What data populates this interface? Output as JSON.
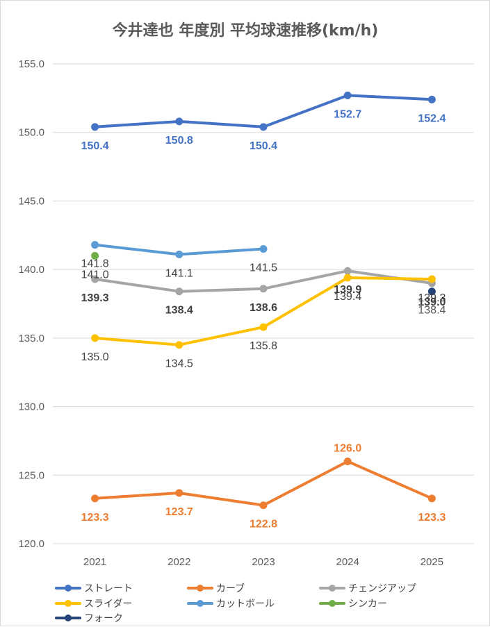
{
  "chart_data": {
    "type": "line",
    "title": "今井達也 年度別 平均球速推移(km/h)",
    "categories": [
      "2021",
      "2022",
      "2023",
      "2024",
      "2025"
    ],
    "ylim": [
      120.0,
      155.0
    ],
    "yticks": [
      "120.0",
      "125.0",
      "130.0",
      "135.0",
      "140.0",
      "145.0",
      "150.0",
      "155.0"
    ],
    "grid": true,
    "legend_position": "bottom",
    "series": [
      {
        "name": "ストレート",
        "color": "#4472c4",
        "values": [
          150.4,
          150.8,
          150.4,
          152.7,
          152.4
        ],
        "labels": [
          "150.4",
          "150.8",
          "150.4",
          "152.7",
          "152.4"
        ]
      },
      {
        "name": "カーブ",
        "color": "#ed7d31",
        "values": [
          123.3,
          123.7,
          122.8,
          126.0,
          123.3
        ],
        "labels": [
          "123.3",
          "123.7",
          "122.8",
          "126.0",
          "123.3"
        ]
      },
      {
        "name": "チェンジアップ",
        "color": "#a5a5a5",
        "values": [
          139.3,
          138.4,
          138.6,
          139.9,
          139.0
        ],
        "labels": [
          "139.3",
          "138.4",
          "138.6",
          "139.9",
          "139.0"
        ]
      },
      {
        "name": "スライダー",
        "color": "#ffc000",
        "values": [
          135.0,
          134.5,
          135.8,
          139.4,
          139.3
        ],
        "labels": [
          "135.0",
          "134.5",
          "135.8",
          "139.4",
          "139.3"
        ]
      },
      {
        "name": "カットボール",
        "color": "#5b9bd5",
        "values": [
          141.8,
          141.1,
          141.5,
          null,
          null
        ],
        "labels": [
          "141.8",
          "141.1",
          "141.5",
          null,
          null
        ]
      },
      {
        "name": "シンカー",
        "color": "#70ad47",
        "values": [
          141.0,
          null,
          null,
          null,
          null
        ],
        "labels": [
          "141.0",
          null,
          null,
          null,
          null
        ]
      },
      {
        "name": "フォーク",
        "color": "#264478",
        "values": [
          null,
          null,
          null,
          null,
          138.4
        ],
        "labels": [
          null,
          null,
          null,
          null,
          "138.4"
        ]
      }
    ]
  }
}
